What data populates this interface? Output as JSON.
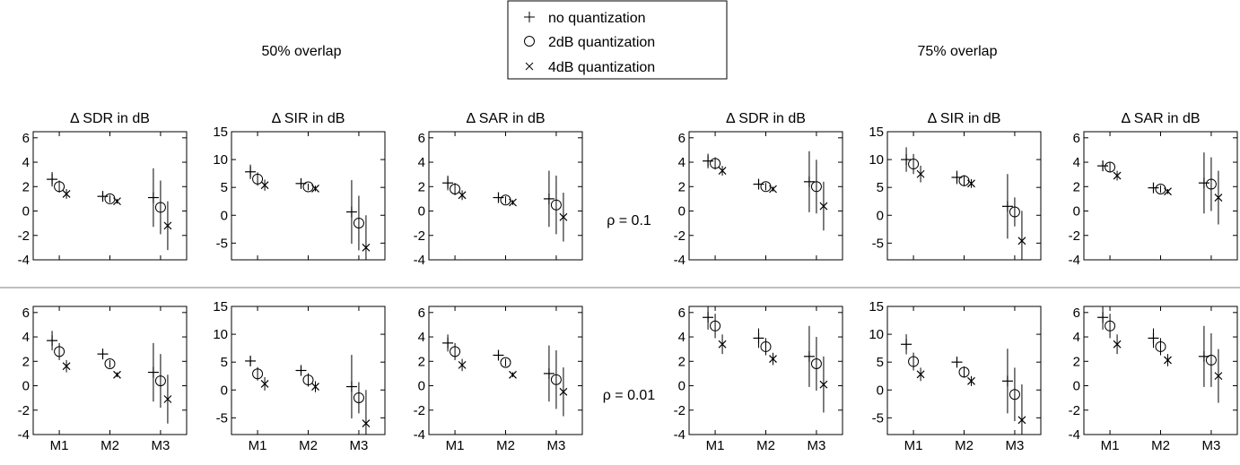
{
  "legend": {
    "items": [
      {
        "marker": "+",
        "label": "no quantization"
      },
      {
        "marker": "o",
        "label": "2dB quantization"
      },
      {
        "marker": "x",
        "label": "4dB quantization"
      }
    ]
  },
  "group_titles": [
    "50% overlap",
    "75% overlap"
  ],
  "row_labels": [
    "ρ = 0.1",
    "ρ = 0.01"
  ],
  "colors": {
    "ink": "#000000",
    "divider": "#7f7f7f"
  },
  "chart_data": {
    "type": "scatter",
    "description_of_layout": "2 rows x 6 panels; error-bar plots",
    "series_names": [
      "no quantization",
      "2dB quantization",
      "4dB quantization"
    ],
    "categories": [
      "M1",
      "M2",
      "M3"
    ],
    "panels": [
      {
        "title": "Δ SDR in dB",
        "group": "50% overlap",
        "rho": "ρ = 0.1",
        "ylim": [
          -4,
          6.5
        ],
        "yticks": [
          -4,
          -2,
          0,
          2,
          4,
          6
        ],
        "series": [
          {
            "name": "no quantization",
            "values": [
              2.6,
              1.2,
              1.1
            ],
            "err": [
              0.6,
              0.3,
              2.4
            ]
          },
          {
            "name": "2dB quantization",
            "values": [
              2.0,
              1.0,
              0.3
            ],
            "err": [
              0.5,
              0.3,
              2.2
            ]
          },
          {
            "name": "4dB quantization",
            "values": [
              1.4,
              0.8,
              -1.2
            ],
            "err": [
              0.4,
              0.2,
              2.0
            ]
          }
        ]
      },
      {
        "title": "Δ SIR in dB",
        "group": "50% overlap",
        "rho": "ρ = 0.1",
        "ylim": [
          -8,
          15
        ],
        "yticks": [
          -5,
          0,
          5,
          10,
          15
        ],
        "series": [
          {
            "name": "no quantization",
            "values": [
              7.8,
              5.7,
              0.6
            ],
            "err": [
              1.3,
              0.6,
              5.7
            ]
          },
          {
            "name": "2dB quantization",
            "values": [
              6.5,
              5.1,
              -1.4
            ],
            "err": [
              1.2,
              0.6,
              4.9
            ]
          },
          {
            "name": "4dB quantization",
            "values": [
              5.4,
              4.8,
              -5.8
            ],
            "err": [
              1.0,
              0.5,
              5.8
            ]
          }
        ]
      },
      {
        "title": "Δ SAR in dB",
        "group": "50% overlap",
        "rho": "ρ = 0.1",
        "ylim": [
          -4,
          6.5
        ],
        "yticks": [
          -4,
          -2,
          0,
          2,
          4,
          6
        ],
        "series": [
          {
            "name": "no quantization",
            "values": [
              2.3,
              1.1,
              1.0
            ],
            "err": [
              0.6,
              0.3,
              2.3
            ]
          },
          {
            "name": "2dB quantization",
            "values": [
              1.8,
              0.9,
              0.5
            ],
            "err": [
              0.5,
              0.3,
              2.4
            ]
          },
          {
            "name": "4dB quantization",
            "values": [
              1.3,
              0.7,
              -0.5
            ],
            "err": [
              0.4,
              0.2,
              2.0
            ]
          }
        ]
      },
      {
        "title": "Δ SDR in dB",
        "group": "75% overlap",
        "rho": "ρ = 0.1",
        "ylim": [
          -4,
          6.5
        ],
        "yticks": [
          -4,
          -2,
          0,
          2,
          4,
          6
        ],
        "series": [
          {
            "name": "no quantization",
            "values": [
              4.1,
              2.2,
              2.4
            ],
            "err": [
              0.6,
              0.3,
              2.5
            ]
          },
          {
            "name": "2dB quantization",
            "values": [
              3.9,
              2.0,
              2.0
            ],
            "err": [
              0.5,
              0.3,
              2.2
            ]
          },
          {
            "name": "4dB quantization",
            "values": [
              3.3,
              1.8,
              0.4
            ],
            "err": [
              0.4,
              0.2,
              2.0
            ]
          }
        ]
      },
      {
        "title": "Δ SIR in dB",
        "group": "75% overlap",
        "rho": "ρ = 0.1",
        "ylim": [
          -8,
          15
        ],
        "yticks": [
          -5,
          0,
          5,
          10,
          15
        ],
        "series": [
          {
            "name": "no quantization",
            "values": [
              10.0,
              6.8,
              1.6
            ],
            "err": [
              2.2,
              1.2,
              5.8
            ]
          },
          {
            "name": "2dB quantization",
            "values": [
              9.2,
              6.2,
              0.6
            ],
            "err": [
              1.8,
              1.0,
              2.6
            ]
          },
          {
            "name": "4dB quantization",
            "values": [
              7.4,
              5.7,
              -4.6
            ],
            "err": [
              1.5,
              0.8,
              5.4
            ]
          }
        ]
      },
      {
        "title": "Δ SAR in dB",
        "group": "75% overlap",
        "rho": "ρ = 0.1",
        "ylim": [
          -4,
          6.5
        ],
        "yticks": [
          -4,
          -2,
          0,
          2,
          4,
          6
        ],
        "series": [
          {
            "name": "no quantization",
            "values": [
              3.7,
              1.9,
              2.3
            ],
            "err": [
              0.4,
              0.3,
              2.5
            ]
          },
          {
            "name": "2dB quantization",
            "values": [
              3.6,
              1.8,
              2.2
            ],
            "err": [
              0.4,
              0.3,
              2.2
            ]
          },
          {
            "name": "4dB quantization",
            "values": [
              2.9,
              1.6,
              1.1
            ],
            "err": [
              0.4,
              0.2,
              2.2
            ]
          }
        ]
      },
      {
        "title": "",
        "group": "50% overlap",
        "rho": "ρ = 0.01",
        "ylim": [
          -4,
          6.5
        ],
        "yticks": [
          -4,
          -2,
          0,
          2,
          4,
          6
        ],
        "series": [
          {
            "name": "no quantization",
            "values": [
              3.7,
              2.6,
              1.1
            ],
            "err": [
              0.8,
              0.3,
              2.4
            ]
          },
          {
            "name": "2dB quantization",
            "values": [
              2.8,
              1.8,
              0.4
            ],
            "err": [
              0.7,
              0.3,
              2.2
            ]
          },
          {
            "name": "4dB quantization",
            "values": [
              1.6,
              0.9,
              -1.1
            ],
            "err": [
              0.5,
              0.2,
              2.0
            ]
          }
        ]
      },
      {
        "title": "",
        "group": "50% overlap",
        "rho": "ρ = 0.01",
        "ylim": [
          -8,
          15
        ],
        "yticks": [
          -5,
          0,
          5,
          10,
          15
        ],
        "series": [
          {
            "name": "no quantization",
            "values": [
              5.2,
              3.5,
              0.6
            ],
            "err": [
              0.8,
              0.8,
              5.7
            ]
          },
          {
            "name": "2dB quantization",
            "values": [
              2.9,
              1.8,
              -1.4
            ],
            "err": [
              1.2,
              1.2,
              2.8
            ]
          },
          {
            "name": "4dB quantization",
            "values": [
              1.1,
              0.6,
              -6.0
            ],
            "err": [
              1.2,
              1.0,
              6.0
            ]
          }
        ]
      },
      {
        "title": "",
        "group": "50% overlap",
        "rho": "ρ = 0.01",
        "ylim": [
          -4,
          6.5
        ],
        "yticks": [
          -4,
          -2,
          0,
          2,
          4,
          6
        ],
        "series": [
          {
            "name": "no quantization",
            "values": [
              3.5,
              2.5,
              1.0
            ],
            "err": [
              0.7,
              0.3,
              2.3
            ]
          },
          {
            "name": "2dB quantization",
            "values": [
              2.8,
              1.9,
              0.5
            ],
            "err": [
              0.7,
              0.3,
              2.4
            ]
          },
          {
            "name": "4dB quantization",
            "values": [
              1.7,
              0.9,
              -0.5
            ],
            "err": [
              0.5,
              0.2,
              2.0
            ]
          }
        ]
      },
      {
        "title": "",
        "group": "75% overlap",
        "rho": "ρ = 0.01",
        "ylim": [
          -4,
          6.5
        ],
        "yticks": [
          -4,
          -2,
          0,
          2,
          4,
          6
        ],
        "series": [
          {
            "name": "no quantization",
            "values": [
              5.6,
              3.9,
              2.4
            ],
            "err": [
              1.0,
              0.8,
              2.5
            ]
          },
          {
            "name": "2dB quantization",
            "values": [
              4.9,
              3.2,
              1.8
            ],
            "err": [
              1.0,
              0.7,
              2.2
            ]
          },
          {
            "name": "4dB quantization",
            "values": [
              3.4,
              2.2,
              0.1
            ],
            "err": [
              0.8,
              0.5,
              2.3
            ]
          }
        ]
      },
      {
        "title": "",
        "group": "75% overlap",
        "rho": "ρ = 0.01",
        "ylim": [
          -8,
          15
        ],
        "yticks": [
          -5,
          0,
          5,
          10,
          15
        ],
        "series": [
          {
            "name": "no quantization",
            "values": [
              8.2,
              5.0,
              1.6
            ],
            "err": [
              1.8,
              1.0,
              5.8
            ]
          },
          {
            "name": "2dB quantization",
            "values": [
              5.1,
              3.2,
              -0.8
            ],
            "err": [
              1.6,
              1.0,
              4.8
            ]
          },
          {
            "name": "4dB quantization",
            "values": [
              2.8,
              1.6,
              -5.4
            ],
            "err": [
              1.2,
              0.9,
              6.4
            ]
          }
        ]
      },
      {
        "title": "",
        "group": "75% overlap",
        "rho": "ρ = 0.01",
        "ylim": [
          -4,
          6.5
        ],
        "yticks": [
          -4,
          -2,
          0,
          2,
          4,
          6
        ],
        "series": [
          {
            "name": "no quantization",
            "values": [
              5.6,
              3.9,
              2.4
            ],
            "err": [
              1.0,
              0.8,
              2.5
            ]
          },
          {
            "name": "2dB quantization",
            "values": [
              4.9,
              3.2,
              2.1
            ],
            "err": [
              1.0,
              0.7,
              2.2
            ]
          },
          {
            "name": "4dB quantization",
            "values": [
              3.4,
              2.1,
              0.8
            ],
            "err": [
              0.8,
              0.5,
              2.2
            ]
          }
        ]
      }
    ]
  }
}
